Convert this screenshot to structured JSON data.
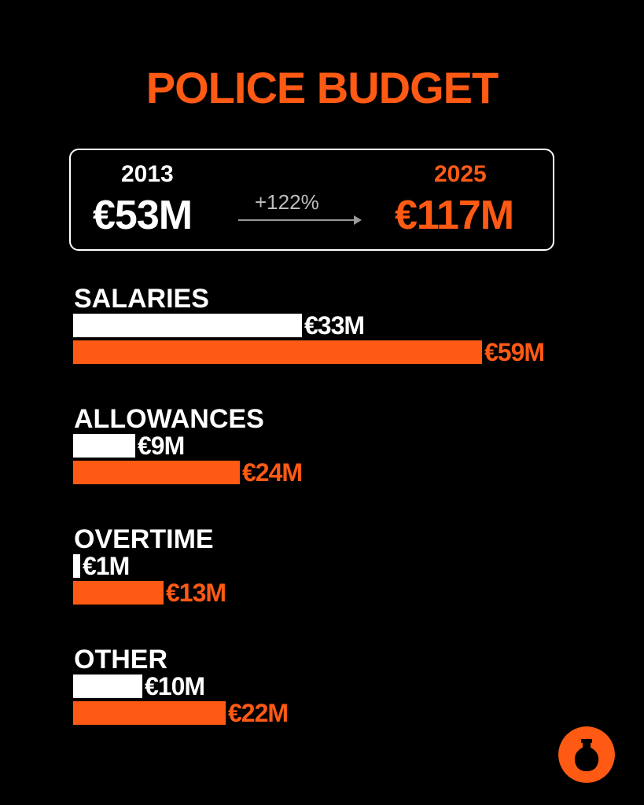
{
  "colors": {
    "accent": "#FF5A14",
    "base": "#FFFFFF",
    "background": "#000000"
  },
  "title": "POLICE BUDGET",
  "summary": {
    "from_year": "2013",
    "from_value": "€53M",
    "change": "+122%",
    "to_year": "2025",
    "to_value": "€117M"
  },
  "chart_data": {
    "type": "bar",
    "orientation": "horizontal",
    "categories": [
      "SALARIES",
      "ALLOWANCES",
      "OVERTIME",
      "OTHER"
    ],
    "series": [
      {
        "name": "2013",
        "values": [
          33,
          9,
          1,
          10
        ],
        "labels": [
          "€33M",
          "€9M",
          "€1M",
          "€10M"
        ]
      },
      {
        "name": "2025",
        "values": [
          59,
          24,
          13,
          22
        ],
        "labels": [
          "€59M",
          "€24M",
          "€13M",
          "€22M"
        ]
      }
    ],
    "xlim": [
      0,
      59
    ],
    "grid": false,
    "legend": "none"
  },
  "logo_icon": "jar-icon"
}
